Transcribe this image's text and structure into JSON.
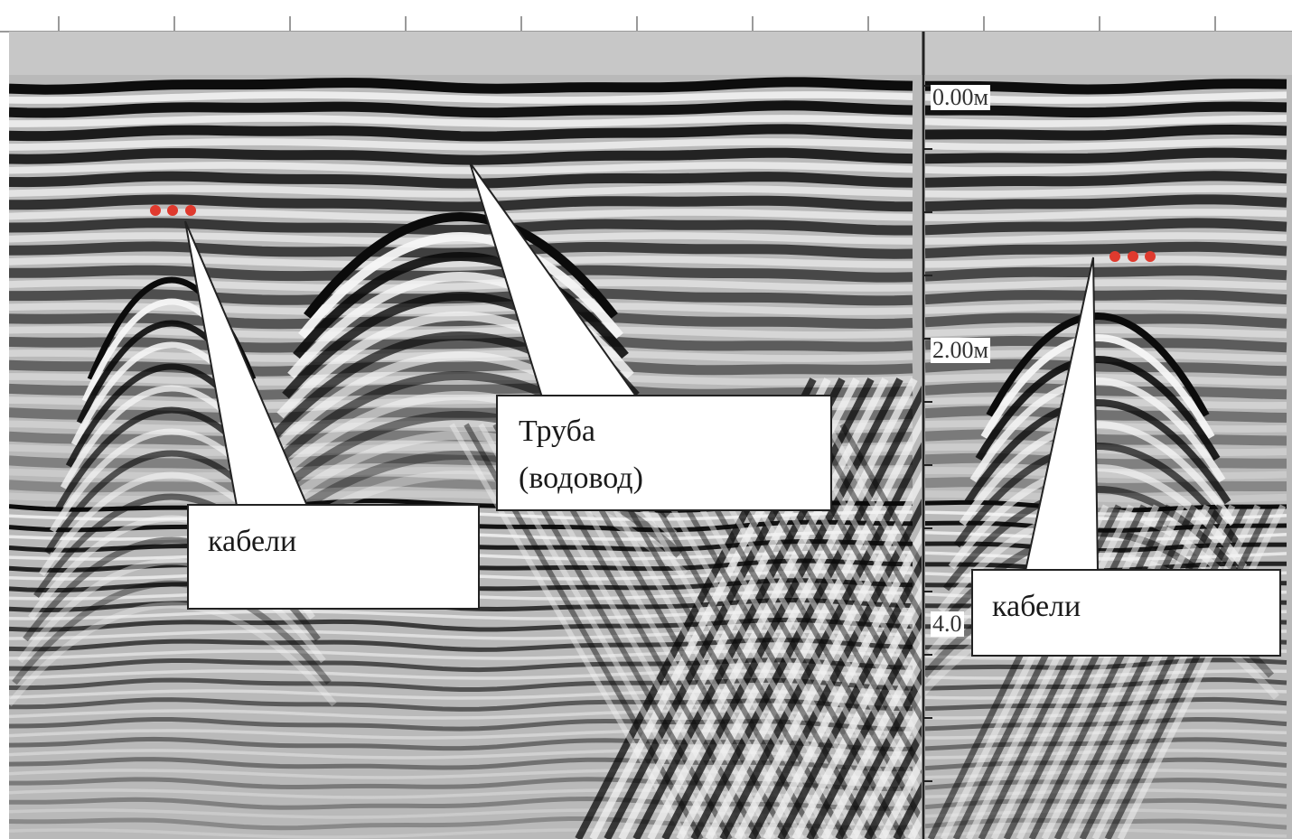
{
  "colors": {
    "marker": "#e03a2e",
    "callout_fill": "#ffffff",
    "callout_stroke": "#222222",
    "background": "#ffffff"
  },
  "depth_scale": {
    "labels": [
      "0.00м",
      "2.00м",
      "4.0"
    ]
  },
  "annotations": {
    "cables_left": {
      "label": "кабели"
    },
    "pipe": {
      "line1": "Труба",
      "line2": "(водовод)"
    },
    "cables_right": {
      "label": "кабели"
    }
  }
}
